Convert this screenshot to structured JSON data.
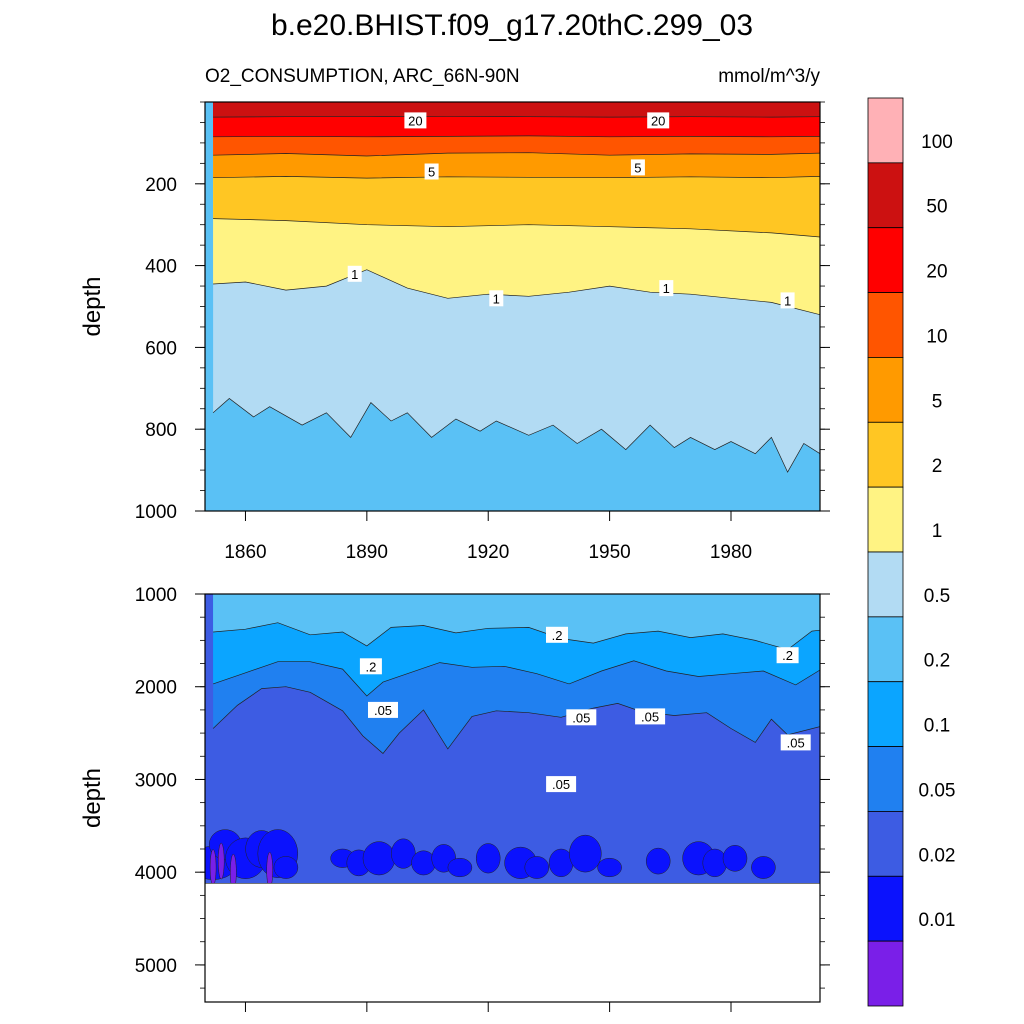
{
  "figure": {
    "title": "b.e20.BHIST.f09_g17.20thC.299_03",
    "left_subtitle": "O2_CONSUMPTION, ARC_66N-90N",
    "right_subtitle": "mmol/m^3/y"
  },
  "chart_data": [
    {
      "type": "contour",
      "panel": "upper",
      "ylabel": "depth",
      "xlabel": "",
      "xlim": [
        1850,
        2002
      ],
      "ylim": [
        1000,
        0
      ],
      "x_ticks": [
        1860,
        1890,
        1920,
        1950,
        1980
      ],
      "y_ticks": [
        200,
        400,
        600,
        800,
        1000
      ],
      "contour_levels": [
        0.5,
        1,
        2,
        5,
        10,
        20,
        50
      ],
      "contour_labels": [
        {
          "text": "20",
          "x": 1902,
          "y": 45
        },
        {
          "text": "20",
          "x": 1962,
          "y": 45
        },
        {
          "text": "5",
          "x": 1906,
          "y": 170
        },
        {
          "text": "5",
          "x": 1957,
          "y": 160
        },
        {
          "text": "1",
          "x": 1887,
          "y": 420
        },
        {
          "text": "1",
          "x": 1922,
          "y": 480
        },
        {
          "text": "1",
          "x": 1964,
          "y": 455
        },
        {
          "text": "1",
          "x": 1994,
          "y": 485
        }
      ],
      "boundaries": [
        {
          "level": 50,
          "depth": [
            [
              1852,
              37
            ],
            [
              1870,
              36
            ],
            [
              1890,
              36
            ],
            [
              1910,
              35
            ],
            [
              1930,
              36
            ],
            [
              1950,
              37
            ],
            [
              1970,
              36
            ],
            [
              1990,
              37
            ],
            [
              2002,
              36
            ]
          ]
        },
        {
          "level": 20,
          "depth": [
            [
              1852,
              85
            ],
            [
              1870,
              84
            ],
            [
              1890,
              85
            ],
            [
              1910,
              84
            ],
            [
              1930,
              83
            ],
            [
              1950,
              85
            ],
            [
              1970,
              84
            ],
            [
              1990,
              85
            ],
            [
              2002,
              84
            ]
          ]
        },
        {
          "level": 10,
          "depth": [
            [
              1852,
              130
            ],
            [
              1870,
              126
            ],
            [
              1890,
              132
            ],
            [
              1910,
              125
            ],
            [
              1930,
              124
            ],
            [
              1950,
              130
            ],
            [
              1970,
              127
            ],
            [
              1990,
              128
            ],
            [
              2002,
              125
            ]
          ]
        },
        {
          "level": 5,
          "depth": [
            [
              1852,
              185
            ],
            [
              1870,
              182
            ],
            [
              1890,
              186
            ],
            [
              1910,
              183
            ],
            [
              1930,
              184
            ],
            [
              1950,
              185
            ],
            [
              1970,
              183
            ],
            [
              1990,
              185
            ],
            [
              2002,
              182
            ]
          ]
        },
        {
          "level": 2,
          "depth": [
            [
              1852,
              285
            ],
            [
              1870,
              290
            ],
            [
              1890,
              300
            ],
            [
              1910,
              305
            ],
            [
              1930,
              300
            ],
            [
              1950,
              305
            ],
            [
              1970,
              310
            ],
            [
              1990,
              320
            ],
            [
              2002,
              330
            ]
          ]
        },
        {
          "level": 1,
          "depth": [
            [
              1852,
              445
            ],
            [
              1860,
              440
            ],
            [
              1870,
              460
            ],
            [
              1880,
              450
            ],
            [
              1890,
              410
            ],
            [
              1900,
              455
            ],
            [
              1910,
              480
            ],
            [
              1920,
              470
            ],
            [
              1930,
              475
            ],
            [
              1940,
              465
            ],
            [
              1950,
              450
            ],
            [
              1960,
              465
            ],
            [
              1970,
              470
            ],
            [
              1980,
              480
            ],
            [
              1990,
              490
            ],
            [
              2002,
              520
            ]
          ]
        },
        {
          "level": 0.5,
          "depth": [
            [
              1852,
              760
            ],
            [
              1856,
              725
            ],
            [
              1862,
              770
            ],
            [
              1866,
              745
            ],
            [
              1874,
              790
            ],
            [
              1880,
              760
            ],
            [
              1886,
              820
            ],
            [
              1891,
              735
            ],
            [
              1896,
              780
            ],
            [
              1900,
              760
            ],
            [
              1906,
              820
            ],
            [
              1912,
              775
            ],
            [
              1918,
              805
            ],
            [
              1922,
              780
            ],
            [
              1930,
              815
            ],
            [
              1936,
              790
            ],
            [
              1942,
              835
            ],
            [
              1948,
              800
            ],
            [
              1954,
              850
            ],
            [
              1960,
              790
            ],
            [
              1966,
              845
            ],
            [
              1970,
              820
            ],
            [
              1976,
              850
            ],
            [
              1980,
              830
            ],
            [
              1986,
              860
            ],
            [
              1990,
              820
            ],
            [
              1994,
              905
            ],
            [
              1998,
              835
            ],
            [
              2002,
              860
            ]
          ]
        }
      ]
    },
    {
      "type": "contour",
      "panel": "lower",
      "ylabel": "depth",
      "xlabel": "",
      "xlim": [
        1850,
        2002
      ],
      "ylim": [
        5400,
        1000
      ],
      "x_ticks": [
        1860,
        1890,
        1920,
        1950,
        1980
      ],
      "y_ticks": [
        1000,
        2000,
        3000,
        4000,
        5000
      ],
      "data_bottom_depth": 4120,
      "contour_levels": [
        0.01,
        0.02,
        0.05,
        0.1,
        0.2
      ],
      "contour_labels": [
        {
          "text": ".2",
          "x": 1891,
          "y": 1780
        },
        {
          "text": ".2",
          "x": 1937,
          "y": 1440
        },
        {
          "text": ".2",
          "x": 1994,
          "y": 1660
        },
        {
          "text": ".05",
          "x": 1894,
          "y": 2250
        },
        {
          "text": ".05",
          "x": 1938,
          "y": 3050
        },
        {
          "text": ".05",
          "x": 1943,
          "y": 2330
        },
        {
          "text": ".05",
          "x": 1960,
          "y": 2320
        },
        {
          "text": ".05",
          "x": 1996,
          "y": 2600
        }
      ],
      "boundaries": [
        {
          "level": 0.2,
          "depth": [
            [
              1852,
              1410
            ],
            [
              1860,
              1380
            ],
            [
              1868,
              1310
            ],
            [
              1876,
              1440
            ],
            [
              1884,
              1410
            ],
            [
              1890,
              1560
            ],
            [
              1896,
              1360
            ],
            [
              1904,
              1340
            ],
            [
              1912,
              1420
            ],
            [
              1920,
              1370
            ],
            [
              1930,
              1360
            ],
            [
              1938,
              1480
            ],
            [
              1946,
              1530
            ],
            [
              1954,
              1430
            ],
            [
              1962,
              1400
            ],
            [
              1970,
              1470
            ],
            [
              1978,
              1430
            ],
            [
              1986,
              1500
            ],
            [
              1994,
              1600
            ],
            [
              2000,
              1400
            ],
            [
              2002,
              1390
            ]
          ]
        },
        {
          "level": 0.1,
          "depth": [
            [
              1852,
              1970
            ],
            [
              1860,
              1850
            ],
            [
              1868,
              1730
            ],
            [
              1876,
              1730
            ],
            [
              1884,
              1810
            ],
            [
              1890,
              2100
            ],
            [
              1894,
              1950
            ],
            [
              1900,
              1860
            ],
            [
              1908,
              1740
            ],
            [
              1916,
              1790
            ],
            [
              1924,
              1780
            ],
            [
              1932,
              1860
            ],
            [
              1940,
              1970
            ],
            [
              1948,
              1830
            ],
            [
              1956,
              1720
            ],
            [
              1964,
              1830
            ],
            [
              1972,
              1890
            ],
            [
              1980,
              1860
            ],
            [
              1988,
              1830
            ],
            [
              1996,
              1980
            ],
            [
              2002,
              1820
            ]
          ]
        },
        {
          "level": 0.05,
          "depth": [
            [
              1852,
              2450
            ],
            [
              1858,
              2200
            ],
            [
              1864,
              2020
            ],
            [
              1870,
              2000
            ],
            [
              1876,
              2060
            ],
            [
              1884,
              2260
            ],
            [
              1889,
              2530
            ],
            [
              1894,
              2720
            ],
            [
              1898,
              2500
            ],
            [
              1904,
              2250
            ],
            [
              1910,
              2670
            ],
            [
              1916,
              2320
            ],
            [
              1922,
              2260
            ],
            [
              1930,
              2280
            ],
            [
              1938,
              2330
            ],
            [
              1946,
              2230
            ],
            [
              1952,
              2180
            ],
            [
              1958,
              2270
            ],
            [
              1966,
              2310
            ],
            [
              1974,
              2280
            ],
            [
              1980,
              2450
            ],
            [
              1986,
              2600
            ],
            [
              1990,
              2350
            ],
            [
              1994,
              2520
            ],
            [
              2002,
              2430
            ]
          ]
        }
      ]
    }
  ],
  "colorbar": {
    "colors": [
      "#ffb1b6",
      "#cc1111",
      "#ff0000",
      "#ff5500",
      "#ff9a00",
      "#ffc623",
      "#fff383",
      "#b2dbf3",
      "#5ac1f5",
      "#0ba5ff",
      "#2080f0",
      "#3d5ce3",
      "#0b12fd",
      "#7a1fe8"
    ],
    "labels": [
      "100",
      "50",
      "20",
      "10",
      "5",
      "2",
      "1",
      "0.5",
      "0.2",
      "0.1",
      "0.05",
      "0.02",
      "0.01"
    ]
  }
}
